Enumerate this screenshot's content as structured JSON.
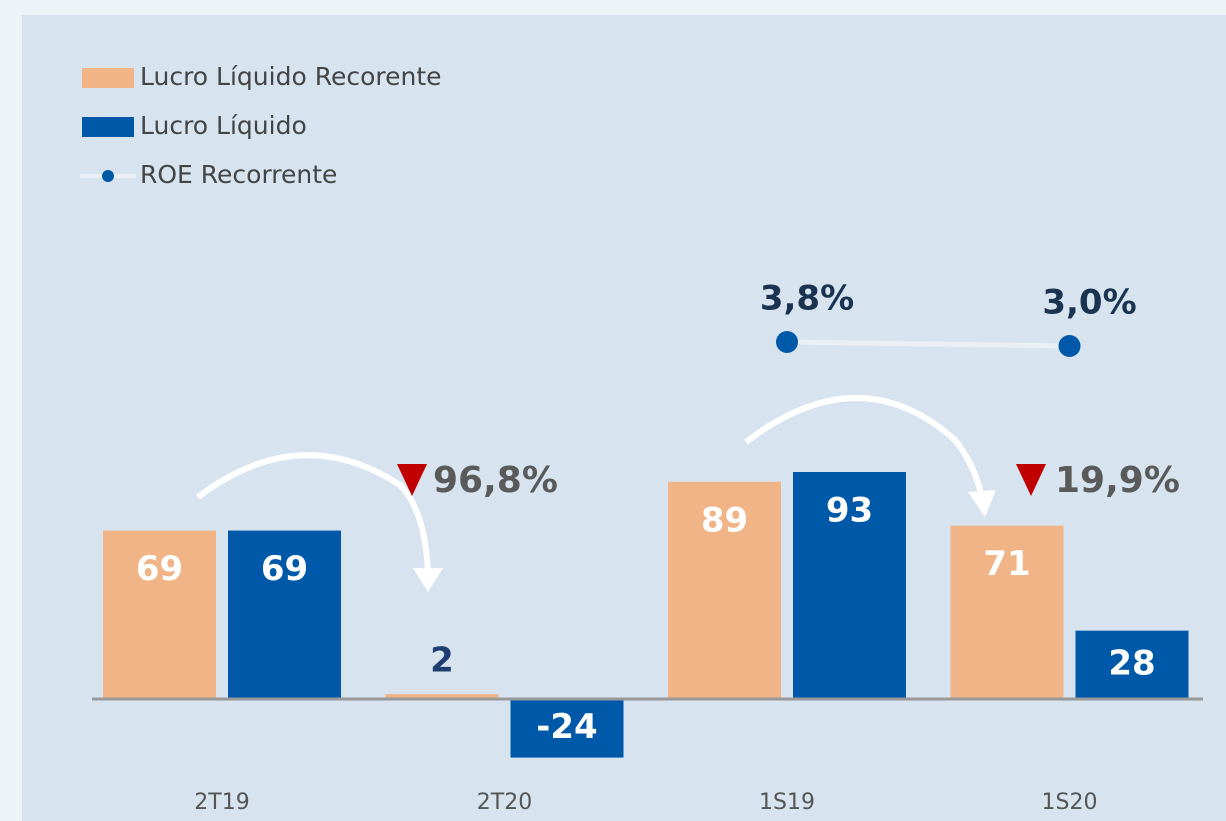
{
  "chart_data": {
    "type": "bar",
    "categories": [
      "2T19",
      "2T20",
      "1S19",
      "1S20"
    ],
    "series": [
      {
        "name": "Lucro Líquido Recorente",
        "color": "#f0b487",
        "values": [
          69,
          2,
          89,
          71
        ]
      },
      {
        "name": "Lucro Líquido",
        "color": "#0058a9",
        "values": [
          69,
          -24,
          93,
          28
        ]
      },
      {
        "name": "ROE Recorrente",
        "type": "line",
        "axis": "y2",
        "color": "#0058a9",
        "line_color": "#eaf0f5",
        "values": [
          null,
          null,
          3.8,
          3.0
        ],
        "value_labels": [
          null,
          null,
          "3,8%",
          "3,0%"
        ]
      }
    ],
    "annotations": [
      "96,8%",
      "19,9%"
    ]
  }
}
